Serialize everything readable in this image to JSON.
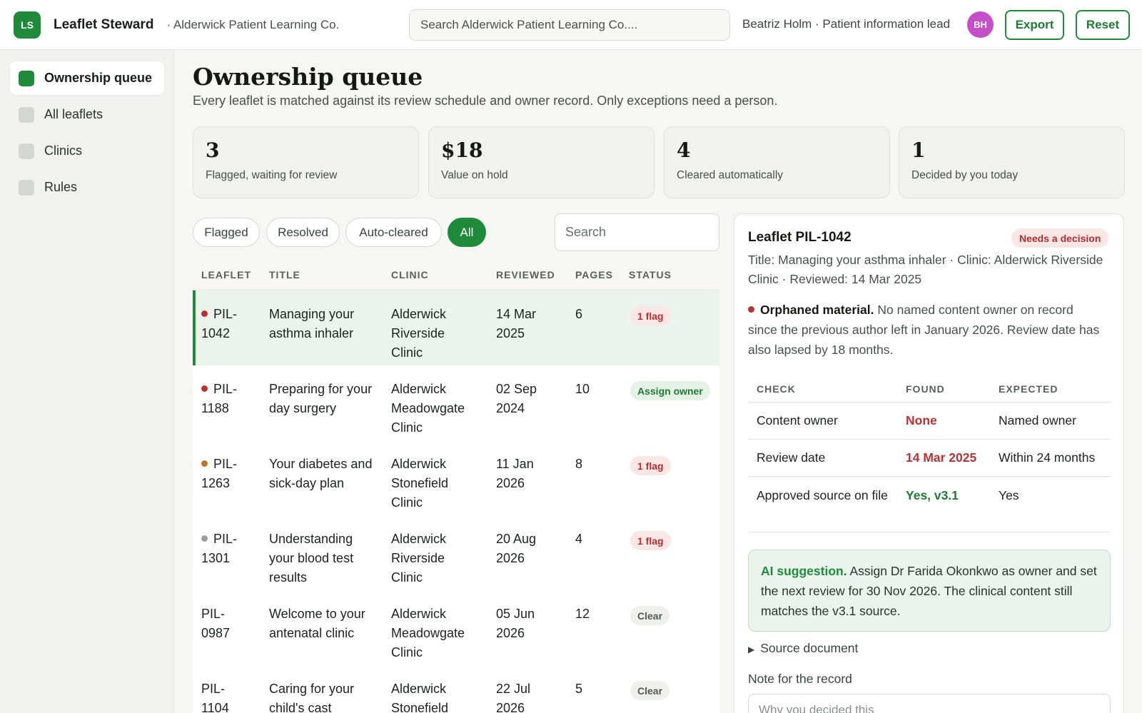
{
  "app": {
    "logo": "LS",
    "name": "Leaflet Steward",
    "org": "· Alderwick Patient Learning Co."
  },
  "header": {
    "search_placeholder": "Search Alderwick Patient Learning Co....",
    "user": "Beatriz Holm · Patient information lead",
    "avatar": "BH",
    "export": "Export",
    "reset": "Reset",
    "brand_color": "#1f8a3a"
  },
  "sidebar": {
    "items": [
      {
        "label": "Ownership queue",
        "active": true
      },
      {
        "label": "All leaflets"
      },
      {
        "label": "Clinics"
      },
      {
        "label": "Rules"
      }
    ]
  },
  "main": {
    "title": "Ownership queue",
    "subtitle": "Every leaflet is matched against its review schedule and owner record. Only exceptions need a person.",
    "stats": [
      {
        "value": "3",
        "label": "Flagged, waiting for review"
      },
      {
        "value": "$18",
        "label": "Value on hold"
      },
      {
        "value": "4",
        "label": "Cleared automatically"
      },
      {
        "value": "1",
        "label": "Decided by you today"
      }
    ],
    "filters": [
      "Flagged",
      "Resolved",
      "Auto-cleared",
      "All"
    ],
    "active_filter": "All",
    "search_placeholder": "Search",
    "columns": [
      "LEAFLET",
      "TITLE",
      "CLINIC",
      "REVIEWED",
      "PAGES",
      "STATUS"
    ],
    "rows": [
      {
        "id": "PIL-\n1042",
        "title": "Managing your asthma inhaler",
        "clinic": "Alderwick Riverside Clinic",
        "reviewed": "14 Mar 2025",
        "pages": "6",
        "status": "1 flag",
        "dot": "#b83232"
      },
      {
        "id": "PIL-\n1188",
        "title": "Preparing for your day surgery",
        "clinic": "Alderwick Meadowgate Clinic",
        "reviewed": "02 Sep 2024",
        "pages": "10",
        "status": "Assign owner",
        "dot": "#b83232"
      },
      {
        "id": "PIL-\n1263",
        "title": "Your diabetes and sick-day plan",
        "clinic": "Alderwick Stonefield Clinic",
        "reviewed": "11 Jan 2026",
        "pages": "8",
        "status": "1 flag",
        "dot": "#c0732a"
      },
      {
        "id": "PIL-\n1301",
        "title": "Understanding your blood test results",
        "clinic": "Alderwick Riverside Clinic",
        "reviewed": "20 Aug 2026",
        "pages": "4",
        "status": "1 flag",
        "dot": "#9a9d9b"
      },
      {
        "id": "PIL-\n0987",
        "title": "Welcome to your antenatal clinic",
        "clinic": "Alderwick Meadowgate Clinic",
        "reviewed": "05 Jun 2026",
        "pages": "12",
        "status": "Clear",
        "dot": ""
      },
      {
        "id": "PIL-\n1104",
        "title": "Caring for your child's cast",
        "clinic": "Alderwick Stonefield Clinic",
        "reviewed": "22 Jul 2026",
        "pages": "5",
        "status": "Clear",
        "dot": ""
      }
    ]
  },
  "detail": {
    "title": "Leaflet PIL-1042",
    "badge": "Needs a decision",
    "meta": "Title: Managing your asthma inhaler · Clinic: Alderwick Riverside Clinic · Reviewed: 14 Mar 2025",
    "issue_title": "Orphaned material.",
    "issue_text": " No named content owner on record since the previous author left in January 2026. Review date has also lapsed by 18 months.",
    "check_columns": [
      "CHECK",
      "FOUND",
      "EXPECTED"
    ],
    "checks": [
      {
        "check": "Content owner",
        "found": "None",
        "expected": "Named owner",
        "found_color": "#b83232"
      },
      {
        "check": "Review date",
        "found": "14 Mar 2025",
        "expected": "Within 24 months",
        "found_color": "#b83232"
      },
      {
        "check": "Approved source on file",
        "found": "Yes, v3.1",
        "expected": "Yes",
        "found_color": "#1f7a34"
      }
    ],
    "ai_label": "AI suggestion.",
    "ai_text": " Assign Dr Farida Okonkwo as owner and set the next review for 30 Nov 2026. The clinical content still matches the v3.1 source.",
    "source_toggle": "Source document",
    "note_label": "Note for the record",
    "note_placeholder": "Why you decided this"
  }
}
